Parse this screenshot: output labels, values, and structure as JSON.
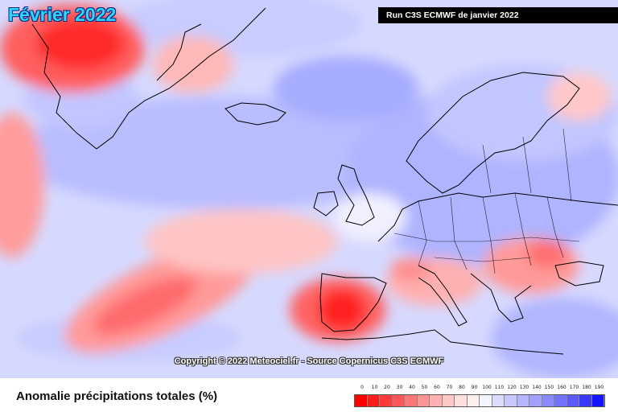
{
  "map": {
    "title": "Février 2022",
    "run_label": "Run C3S ECMWF de janvier 2022",
    "copyright": "Copyright © 2022 Meteociel.fr - Source Copernicus C3S ECMWF",
    "caption": "Anomalie précipitations totales (%)",
    "ocean_color": "#d8dcff"
  },
  "legend": {
    "labels": [
      "0",
      "10",
      "20",
      "30",
      "40",
      "50",
      "60",
      "70",
      "80",
      "90",
      "100",
      "110",
      "120",
      "130",
      "140",
      "150",
      "160",
      "170",
      "180",
      "190"
    ],
    "colors": [
      "#ff0000",
      "#ff1c1c",
      "#ff3a3a",
      "#ff5858",
      "#ff7676",
      "#ff9494",
      "#ffb0b0",
      "#ffc8c8",
      "#ffdede",
      "#fff0f0",
      "#f4f4ff",
      "#dcdcff",
      "#c8c8ff",
      "#b4b4ff",
      "#a0a0ff",
      "#8a8aff",
      "#7272ff",
      "#5a5aff",
      "#3a3aff",
      "#1414ff"
    ]
  }
}
